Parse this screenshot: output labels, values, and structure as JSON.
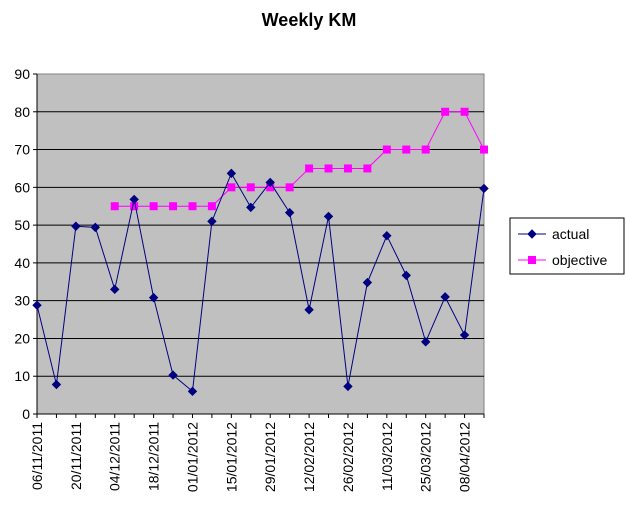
{
  "chart_data": {
    "type": "line",
    "title": "Weekly KM",
    "xlabel": "",
    "ylabel": "",
    "ylim": [
      0,
      90
    ],
    "y_ticks": [
      0,
      10,
      20,
      30,
      40,
      50,
      60,
      70,
      80,
      90
    ],
    "grid": true,
    "legend_position": "right",
    "plot_background": "#C0C0C0",
    "x": [
      "06/11/2011",
      "13/11/2011",
      "20/11/2011",
      "27/11/2011",
      "04/12/2011",
      "11/12/2011",
      "18/12/2011",
      "25/12/2011",
      "01/01/2012",
      "08/01/2012",
      "15/01/2012",
      "22/01/2012",
      "29/01/2012",
      "05/02/2012",
      "12/02/2012",
      "19/02/2012",
      "26/02/2012",
      "04/03/2012",
      "11/03/2012",
      "18/03/2012",
      "25/03/2012",
      "01/04/2012",
      "08/04/2012",
      "15/04/2012"
    ],
    "x_tick_labels": [
      "06/11/2011",
      "20/11/2011",
      "04/12/2011",
      "18/12/2011",
      "01/01/2012",
      "15/01/2012",
      "29/01/2012",
      "12/02/2012",
      "26/02/2012",
      "11/03/2012",
      "25/03/2012",
      "08/04/2012"
    ],
    "series": [
      {
        "name": "actual",
        "color": "#000080",
        "marker": "diamond",
        "values": [
          28.8,
          7.8,
          49.7,
          49.4,
          33.0,
          56.8,
          30.8,
          10.3,
          6.0,
          51.0,
          63.7,
          54.7,
          61.3,
          53.3,
          27.6,
          52.3,
          7.3,
          34.8,
          47.2,
          36.7,
          19.1,
          31.0,
          20.9,
          59.7
        ]
      },
      {
        "name": "objective",
        "color": "#FF00FF",
        "marker": "square",
        "values": [
          null,
          null,
          null,
          null,
          55,
          55,
          55,
          55,
          55,
          55,
          60,
          60,
          60,
          60,
          65,
          65,
          65,
          65,
          70,
          70,
          70,
          80,
          80,
          70
        ]
      }
    ]
  }
}
